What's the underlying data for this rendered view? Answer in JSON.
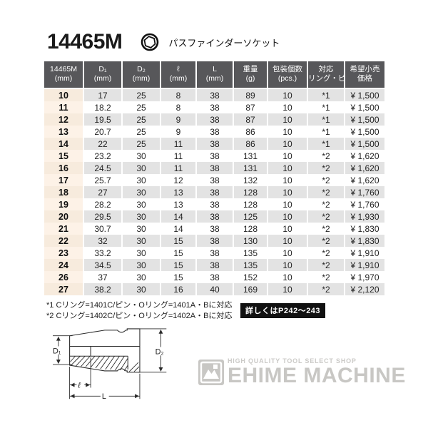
{
  "page": {
    "title": "14465M",
    "subtitle": "パスファインダーソケット"
  },
  "table": {
    "headers": [
      {
        "line1": "14465M",
        "line2": "(mm)"
      },
      {
        "line1": "D₁",
        "line2": "(mm)"
      },
      {
        "line1": "D₂",
        "line2": "(mm)"
      },
      {
        "line1": "ℓ",
        "line2": "(mm)"
      },
      {
        "line1": "L",
        "line2": "(mm)"
      },
      {
        "line1": "重量",
        "line2": "(g)"
      },
      {
        "line1": "包装個数",
        "line2": "(pcs.)"
      },
      {
        "line1": "対応",
        "line2": "リング・ピン"
      },
      {
        "line1": "希望小売",
        "line2": "価格"
      }
    ],
    "col_keys": [
      "size",
      "d1",
      "d2",
      "len-small",
      "len-total",
      "weight",
      "pack-qty",
      "ring-pin",
      "price"
    ],
    "rows": [
      [
        "10",
        "17",
        "25",
        "8",
        "38",
        "89",
        "10",
        "*1",
        "¥ 1,500"
      ],
      [
        "11",
        "18.2",
        "25",
        "8",
        "38",
        "87",
        "10",
        "*1",
        "¥ 1,500"
      ],
      [
        "12",
        "19.5",
        "25",
        "9",
        "38",
        "87",
        "10",
        "*1",
        "¥ 1,500"
      ],
      [
        "13",
        "20.7",
        "25",
        "9",
        "38",
        "86",
        "10",
        "*1",
        "¥ 1,500"
      ],
      [
        "14",
        "22",
        "25",
        "11",
        "38",
        "86",
        "10",
        "*1",
        "¥ 1,500"
      ],
      [
        "15",
        "23.2",
        "30",
        "11",
        "38",
        "131",
        "10",
        "*2",
        "¥ 1,620"
      ],
      [
        "16",
        "24.5",
        "30",
        "11",
        "38",
        "131",
        "10",
        "*2",
        "¥ 1,620"
      ],
      [
        "17",
        "25.7",
        "30",
        "12",
        "38",
        "132",
        "10",
        "*2",
        "¥ 1,620"
      ],
      [
        "18",
        "27",
        "30",
        "13",
        "38",
        "128",
        "10",
        "*2",
        "¥ 1,760"
      ],
      [
        "19",
        "28.2",
        "30",
        "13",
        "38",
        "128",
        "10",
        "*2",
        "¥ 1,760"
      ],
      [
        "20",
        "29.5",
        "30",
        "14",
        "38",
        "125",
        "10",
        "*2",
        "¥ 1,930"
      ],
      [
        "21",
        "30.7",
        "30",
        "14",
        "38",
        "128",
        "10",
        "*2",
        "¥ 1,830"
      ],
      [
        "22",
        "32",
        "30",
        "15",
        "38",
        "130",
        "10",
        "*2",
        "¥ 1,830"
      ],
      [
        "23",
        "33.2",
        "30",
        "15",
        "38",
        "135",
        "10",
        "*2",
        "¥ 1,910"
      ],
      [
        "24",
        "34.5",
        "30",
        "15",
        "38",
        "135",
        "10",
        "*2",
        "¥ 1,910"
      ],
      [
        "26",
        "37",
        "30",
        "15",
        "38",
        "152",
        "10",
        "*2",
        "¥ 1,970"
      ],
      [
        "27",
        "38.2",
        "30",
        "16",
        "40",
        "169",
        "10",
        "*2",
        "¥ 2,120"
      ]
    ]
  },
  "footnotes": {
    "line1": "*1 Cリング=1401C/ピン・Oリング=1401A・Bに対応",
    "line2": "*2 Cリング=1402C/ピン・Oリング=1402A・Bに対応",
    "badge": "詳しくはP242～243"
  },
  "diagram": {
    "d1": "D₁",
    "d2": "D₂",
    "l_small": "ℓ",
    "l_total": "L"
  },
  "logo": {
    "tagline": "HIGH QUALITY TOOL SELECT SHOP",
    "name": "EHIME MACHINE"
  },
  "colors": {
    "header_bg": "#57575a",
    "row_alt": "#e3e3e3",
    "size_col_bg": "#fdf2e7",
    "size_col_alt_bg": "#f7ebdd",
    "badge_bg": "#111111",
    "logo_gray": "#c8c7c4"
  }
}
